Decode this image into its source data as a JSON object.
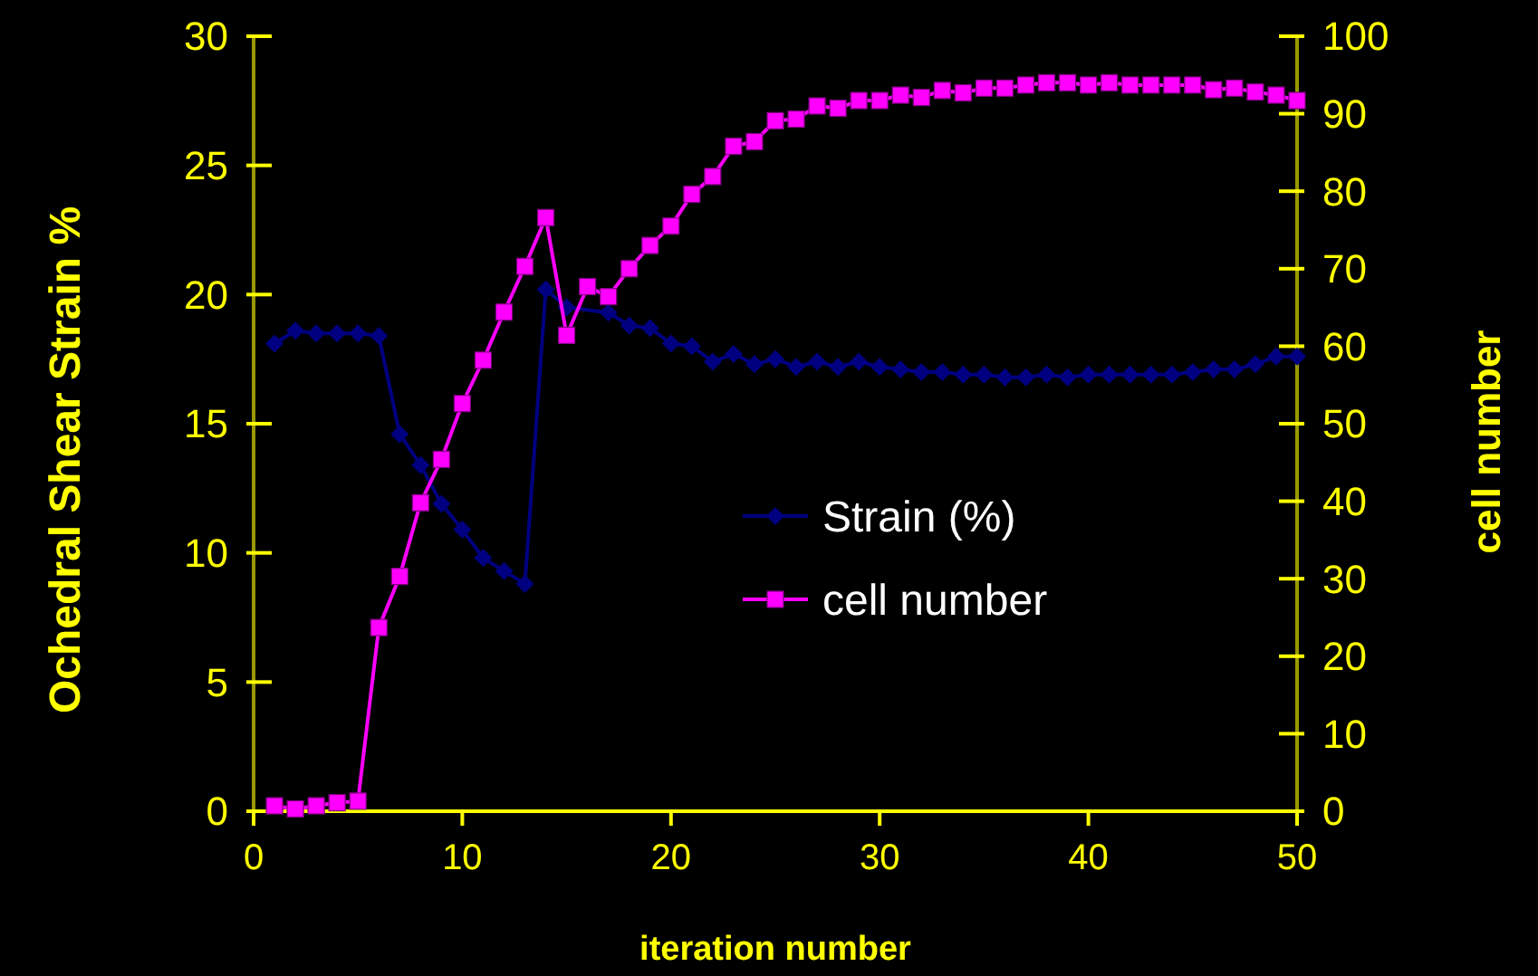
{
  "chart_data": {
    "type": "line",
    "xlabel": "iteration number",
    "ylabel": "Ochedral Shear Strain %",
    "y2label": "cell number",
    "x": [
      1,
      2,
      3,
      4,
      5,
      6,
      7,
      8,
      9,
      10,
      11,
      12,
      13,
      14,
      15,
      16,
      17,
      18,
      19,
      20,
      21,
      22,
      23,
      24,
      25,
      26,
      27,
      28,
      29,
      30,
      31,
      32,
      33,
      34,
      35,
      36,
      37,
      38,
      39,
      40,
      41,
      42,
      43,
      44,
      45,
      46,
      47,
      48,
      49,
      50
    ],
    "series": [
      {
        "name": "Strain (%)",
        "color": "#000080",
        "marker": "diamond",
        "values": [
          18.1,
          18.6,
          18.5,
          18.5,
          18.5,
          18.4,
          14.6,
          13.4,
          11.9,
          10.9,
          9.8,
          9.3,
          8.8,
          20.2,
          19.5,
          null,
          19.3,
          18.8,
          18.7,
          18.1,
          18.0,
          17.4,
          17.7,
          17.3,
          17.5,
          17.2,
          17.4,
          17.2,
          17.4,
          17.2,
          17.1,
          17.0,
          17.0,
          16.9,
          16.9,
          16.8,
          16.8,
          16.9,
          16.8,
          16.9,
          16.9,
          16.9,
          16.9,
          16.9,
          17.0,
          17.1,
          17.1,
          17.3,
          17.6,
          17.6
        ]
      },
      {
        "name": "cell number",
        "color": "#ff00ff",
        "marker": "square",
        "axis": "y2",
        "values": [
          0.7,
          0.3,
          0.7,
          1.1,
          1.3,
          23.7,
          30.3,
          39.8,
          45.4,
          52.6,
          58.2,
          64.4,
          70.3,
          76.6,
          61.4,
          67.7,
          66.4,
          70.0,
          73.0,
          75.5,
          79.6,
          81.9,
          85.8,
          86.4,
          89.1,
          89.3,
          91.0,
          90.7,
          91.7,
          91.7,
          92.4,
          92.1,
          93.0,
          92.7,
          93.3,
          93.3,
          93.7,
          94.0,
          94.0,
          93.7,
          94.0,
          93.7,
          93.7,
          93.7,
          93.7,
          93.1,
          93.3,
          92.8,
          92.4,
          91.7
        ]
      }
    ],
    "xlim": [
      0,
      50
    ],
    "xticks": [
      0,
      10,
      20,
      30,
      40,
      50
    ],
    "ylim": [
      0,
      30
    ],
    "yticks": [
      0,
      5,
      10,
      15,
      20,
      25,
      30
    ],
    "y2lim": [
      0,
      100
    ],
    "y2ticks": [
      0,
      10,
      20,
      30,
      40,
      50,
      60,
      70,
      80,
      90,
      100
    ],
    "legend": "center",
    "grid": false,
    "line_style": "solid"
  }
}
